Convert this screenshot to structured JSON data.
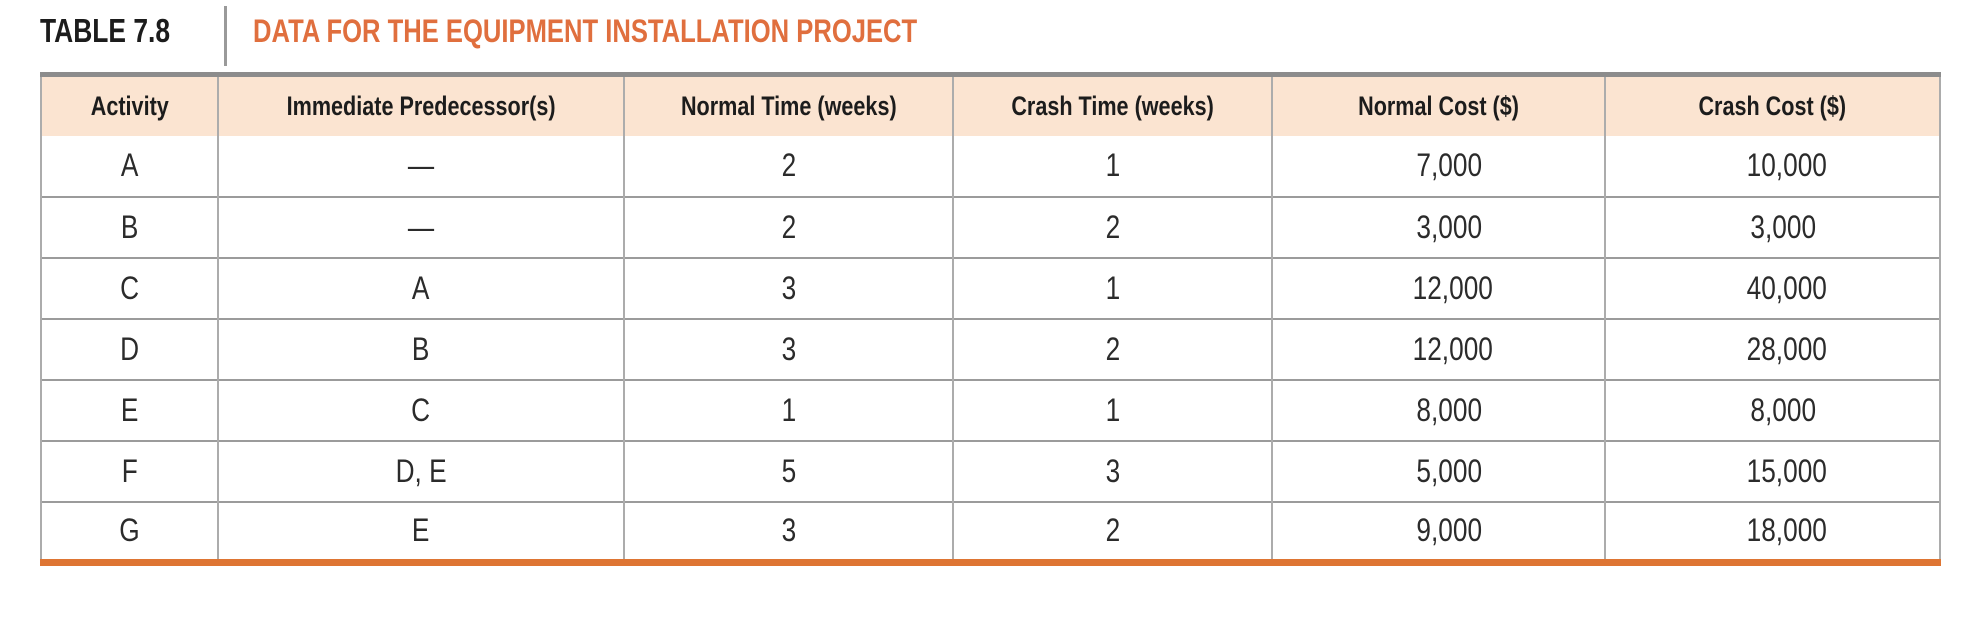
{
  "title_bar": {
    "label": "TABLE 7.8",
    "title": "DATA FOR THE EQUIPMENT INSTALLATION PROJECT"
  },
  "table": {
    "columns": [
      "Activity",
      "Immediate Predecessor(s)",
      "Normal Time (weeks)",
      "Crash Time (weeks)",
      "Normal Cost ($)",
      "Crash Cost ($)"
    ],
    "rows": [
      {
        "activity": "A",
        "predecessors": "—",
        "normal_time": "2",
        "crash_time": "1",
        "normal_cost": "7,000",
        "crash_cost": "10,000"
      },
      {
        "activity": "B",
        "predecessors": "—",
        "normal_time": "2",
        "crash_time": "2",
        "normal_cost": "3,000",
        "crash_cost": "3,000"
      },
      {
        "activity": "C",
        "predecessors": "A",
        "normal_time": "3",
        "crash_time": "1",
        "normal_cost": "12,000",
        "crash_cost": "40,000"
      },
      {
        "activity": "D",
        "predecessors": "B",
        "normal_time": "3",
        "crash_time": "2",
        "normal_cost": "12,000",
        "crash_cost": "28,000"
      },
      {
        "activity": "E",
        "predecessors": "C",
        "normal_time": "1",
        "crash_time": "1",
        "normal_cost": "8,000",
        "crash_cost": "8,000"
      },
      {
        "activity": "F",
        "predecessors": "D, E",
        "normal_time": "5",
        "crash_time": "3",
        "normal_cost": "5,000",
        "crash_cost": "15,000"
      },
      {
        "activity": "G",
        "predecessors": "E",
        "normal_time": "3",
        "crash_time": "2",
        "normal_cost": "9,000",
        "crash_cost": "18,000"
      }
    ]
  },
  "colors": {
    "title_orange": "#E06F3E",
    "rule_orange": "#DE7533",
    "header_bg": "#FBE4D1",
    "top_border": "#8C8C8C",
    "grid_line": "#ACACAC",
    "row_line": "#9B9B9B",
    "divider_gray": "#9A9A9A",
    "text_dark": "#1C1C1C",
    "body_text": "#2B2B2B"
  }
}
